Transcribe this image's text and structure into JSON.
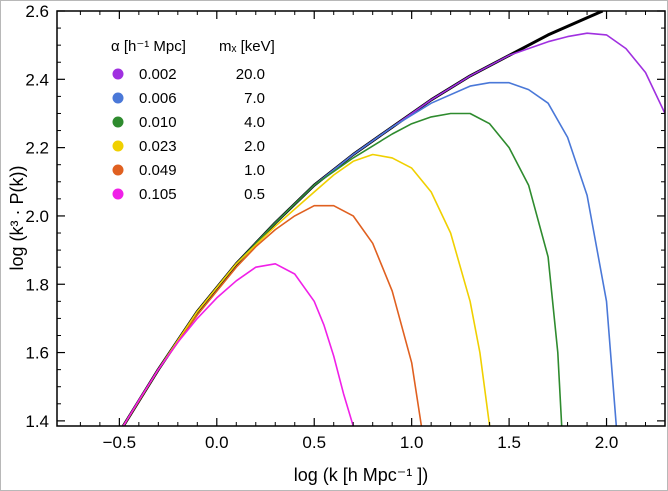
{
  "chart_data": {
    "type": "line",
    "xlabel": "log (k [h Mpc⁻¹ ])",
    "ylabel": "log (k³ · P(k))",
    "xlim": [
      -0.82,
      2.3
    ],
    "ylim": [
      1.385,
      2.6
    ],
    "x_ticks": [
      -0.5,
      0.0,
      0.5,
      1.0,
      1.5,
      2.0
    ],
    "x_tick_labels": [
      "−0.5",
      "0.0",
      "0.5",
      "1.0",
      "1.5",
      "2.0"
    ],
    "y_ticks": [
      1.4,
      1.6,
      1.8,
      2.0,
      2.2,
      2.4,
      2.6
    ],
    "y_tick_labels": [
      "1.4",
      "1.6",
      "1.8",
      "2.0",
      "2.2",
      "2.4",
      "2.6"
    ],
    "grid": false,
    "legend": {
      "placement": "top-left",
      "header_alpha": "α [h⁻¹ Mpc]",
      "header_mx": "mₓ [keV]"
    },
    "series": [
      {
        "color": "#000000",
        "x": [
          -0.48,
          -0.3,
          -0.1,
          0.1,
          0.3,
          0.5,
          0.7,
          0.9,
          1.1,
          1.3,
          1.5,
          1.7,
          1.9,
          1.98
        ],
        "y": [
          1.385,
          1.55,
          1.72,
          1.86,
          1.98,
          2.09,
          2.18,
          2.26,
          2.34,
          2.41,
          2.47,
          2.53,
          2.58,
          2.6
        ]
      },
      {
        "alpha": "0.002",
        "mx": "20.0",
        "color": "#a030e0",
        "x": [
          -0.48,
          -0.3,
          -0.1,
          0.1,
          0.3,
          0.5,
          0.7,
          0.9,
          1.1,
          1.3,
          1.5,
          1.7,
          1.8,
          1.9,
          2.0,
          2.1,
          2.2,
          2.3
        ],
        "y": [
          1.385,
          1.55,
          1.72,
          1.86,
          1.98,
          2.09,
          2.18,
          2.26,
          2.34,
          2.41,
          2.47,
          2.51,
          2.525,
          2.535,
          2.53,
          2.49,
          2.42,
          2.3
        ]
      },
      {
        "alpha": "0.006",
        "mx": "7.0",
        "color": "#4a78d8",
        "x": [
          -0.48,
          -0.3,
          -0.1,
          0.1,
          0.3,
          0.5,
          0.7,
          0.9,
          1.1,
          1.3,
          1.4,
          1.5,
          1.6,
          1.7,
          1.8,
          1.9,
          2.0,
          2.05
        ],
        "y": [
          1.385,
          1.55,
          1.72,
          1.86,
          1.98,
          2.09,
          2.18,
          2.26,
          2.33,
          2.38,
          2.39,
          2.39,
          2.37,
          2.33,
          2.23,
          2.06,
          1.75,
          1.385
        ]
      },
      {
        "alpha": "0.010",
        "mx": "4.0",
        "color": "#2e8b2e",
        "x": [
          -0.48,
          -0.3,
          -0.1,
          0.1,
          0.3,
          0.5,
          0.7,
          0.9,
          1.0,
          1.1,
          1.2,
          1.3,
          1.4,
          1.5,
          1.6,
          1.7,
          1.75,
          1.77
        ],
        "y": [
          1.385,
          1.55,
          1.72,
          1.86,
          1.98,
          2.09,
          2.17,
          2.24,
          2.27,
          2.29,
          2.3,
          2.3,
          2.27,
          2.2,
          2.09,
          1.88,
          1.6,
          1.385
        ]
      },
      {
        "alpha": "0.023",
        "mx": "2.0",
        "color": "#f0d000",
        "x": [
          -0.48,
          -0.3,
          -0.1,
          0.1,
          0.3,
          0.5,
          0.6,
          0.7,
          0.8,
          0.9,
          1.0,
          1.1,
          1.2,
          1.3,
          1.35,
          1.4
        ],
        "y": [
          1.385,
          1.55,
          1.72,
          1.86,
          1.97,
          2.07,
          2.12,
          2.16,
          2.18,
          2.17,
          2.14,
          2.07,
          1.95,
          1.75,
          1.6,
          1.385
        ]
      },
      {
        "alpha": "0.049",
        "mx": "1.0",
        "color": "#e06020",
        "x": [
          -0.48,
          -0.3,
          -0.1,
          0.1,
          0.2,
          0.3,
          0.4,
          0.5,
          0.6,
          0.7,
          0.8,
          0.9,
          1.0,
          1.05
        ],
        "y": [
          1.385,
          1.55,
          1.71,
          1.85,
          1.91,
          1.96,
          2.0,
          2.03,
          2.03,
          2.0,
          1.92,
          1.78,
          1.57,
          1.385
        ]
      },
      {
        "alpha": "0.105",
        "mx": "0.5",
        "color": "#f020e8",
        "x": [
          -0.48,
          -0.4,
          -0.3,
          -0.2,
          -0.1,
          0.0,
          0.1,
          0.2,
          0.3,
          0.4,
          0.5,
          0.55,
          0.6,
          0.65,
          0.7
        ],
        "y": [
          1.385,
          1.46,
          1.55,
          1.63,
          1.7,
          1.76,
          1.81,
          1.85,
          1.86,
          1.83,
          1.75,
          1.68,
          1.59,
          1.48,
          1.385
        ]
      }
    ]
  }
}
